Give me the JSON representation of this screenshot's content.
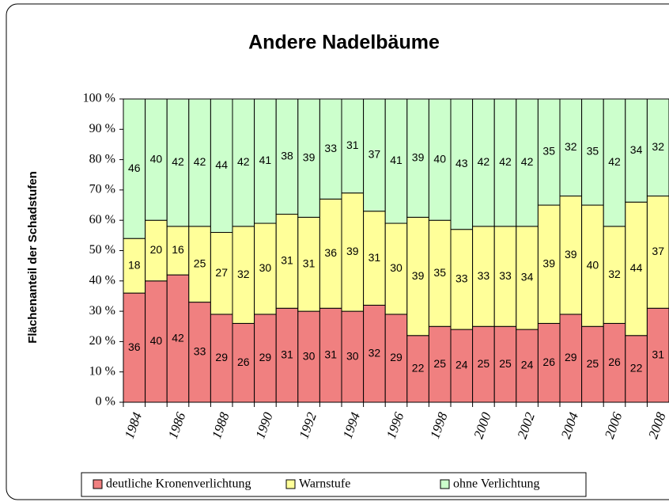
{
  "chart_data": {
    "type": "stacked_bar",
    "title": "Andere Nadelbäume",
    "y_label": "Flächenanteil der Schadstufen",
    "categories": [
      "1984",
      null,
      "1986",
      null,
      "1988",
      null,
      "1990",
      null,
      "1992",
      null,
      "1994",
      null,
      "1996",
      null,
      "1998",
      null,
      "2000",
      null,
      "2002",
      null,
      "2004",
      null,
      "2006",
      null,
      "2008"
    ],
    "series": [
      {
        "name": "deutliche Kronenverlichtung",
        "color": "#f08080",
        "values": [
          36,
          40,
          42,
          33,
          29,
          26,
          29,
          31,
          30,
          31,
          30,
          32,
          29,
          22,
          25,
          24,
          25,
          25,
          24,
          26,
          29,
          25,
          26,
          22,
          31
        ]
      },
      {
        "name": "Warnstufe",
        "color": "#ffff99",
        "values": [
          18,
          20,
          16,
          25,
          27,
          32,
          30,
          31,
          31,
          36,
          39,
          31,
          30,
          39,
          35,
          33,
          33,
          33,
          34,
          39,
          39,
          40,
          32,
          44,
          37
        ]
      },
      {
        "name": "ohne Verlichtung",
        "color": "#ccffcc",
        "values": [
          46,
          40,
          42,
          42,
          44,
          42,
          41,
          38,
          39,
          33,
          31,
          37,
          41,
          39,
          40,
          43,
          42,
          42,
          42,
          35,
          32,
          35,
          42,
          34,
          32
        ]
      }
    ],
    "ylim": [
      0,
      100
    ],
    "yticks": [
      {
        "value": 0,
        "label": "0 %"
      },
      {
        "value": 10,
        "label": "10 %"
      },
      {
        "value": 20,
        "label": "20 %"
      },
      {
        "value": 30,
        "label": "30 %"
      },
      {
        "value": 40,
        "label": "40 %"
      },
      {
        "value": 50,
        "label": "50 %"
      },
      {
        "value": 60,
        "label": "60 %"
      },
      {
        "value": 70,
        "label": "70 %"
      },
      {
        "value": 80,
        "label": "80 %"
      },
      {
        "value": 90,
        "label": "90 %"
      },
      {
        "value": 100,
        "label": "100 %"
      }
    ],
    "legend": "bottom"
  }
}
